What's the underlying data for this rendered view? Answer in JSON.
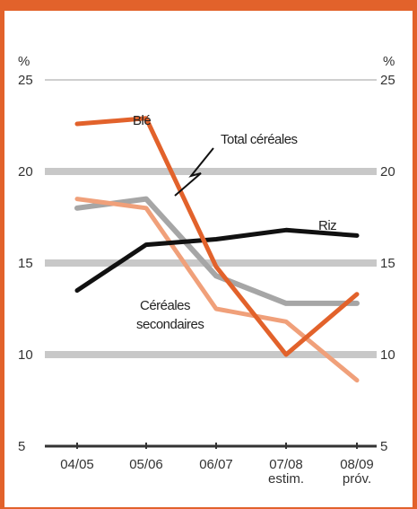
{
  "chart_data": {
    "type": "line",
    "unit_label": "%",
    "categories": [
      "04/05",
      "05/06",
      "06/07",
      "07/08\nestim.",
      "08/09\npróv."
    ],
    "ylim": [
      5,
      25
    ],
    "yticks": [
      5,
      10,
      15,
      20,
      25
    ],
    "grid": true,
    "series": [
      {
        "name": "Blé",
        "color": "#e2622b",
        "values": [
          22.6,
          22.9,
          14.8,
          10.0,
          13.3
        ]
      },
      {
        "name": "Total céréales",
        "color": "#a6a6a6",
        "values": [
          18.0,
          18.5,
          14.3,
          12.8,
          12.8
        ]
      },
      {
        "name": "Riz",
        "color": "#111111",
        "values": [
          13.5,
          16.0,
          16.3,
          16.8,
          16.5
        ]
      },
      {
        "name": "Céréales secondaires",
        "color": "#f0a07a",
        "values": [
          18.5,
          18.0,
          12.5,
          11.8,
          8.6
        ]
      }
    ]
  }
}
